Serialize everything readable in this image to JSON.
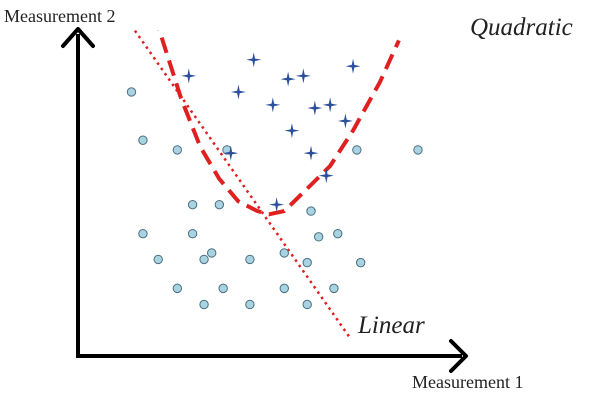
{
  "chart_data": {
    "type": "scatter",
    "title": "",
    "xlabel": "Measurement 1",
    "ylabel": "Measurement 2",
    "xlim": [
      0,
      100
    ],
    "ylim": [
      0,
      100
    ],
    "grid": false,
    "series": [
      {
        "marker": "circle",
        "color": "#a9d3e0",
        "points": [
          [
            14,
            82
          ],
          [
            17,
            67
          ],
          [
            26,
            64
          ],
          [
            39,
            64
          ],
          [
            30,
            47
          ],
          [
            37,
            47
          ],
          [
            17,
            38
          ],
          [
            30,
            38
          ],
          [
            21,
            30
          ],
          [
            33,
            30
          ],
          [
            35,
            32
          ],
          [
            45,
            30
          ],
          [
            38,
            21
          ],
          [
            26,
            21
          ],
          [
            33,
            16
          ],
          [
            45,
            16
          ],
          [
            54,
            21
          ],
          [
            54,
            32
          ],
          [
            61,
            45
          ],
          [
            63,
            37
          ],
          [
            68,
            38
          ],
          [
            60,
            29
          ],
          [
            67,
            21
          ],
          [
            60,
            16
          ],
          [
            74,
            29
          ],
          [
            73,
            64
          ],
          [
            89,
            64
          ]
        ]
      },
      {
        "marker": "star",
        "color": "#2b4f9a",
        "points": [
          [
            46,
            92
          ],
          [
            72,
            90
          ],
          [
            29,
            87
          ],
          [
            55,
            86
          ],
          [
            59,
            87
          ],
          [
            42,
            82
          ],
          [
            66,
            78
          ],
          [
            51,
            78
          ],
          [
            62,
            77
          ],
          [
            70,
            73
          ],
          [
            56,
            70
          ],
          [
            40,
            63
          ],
          [
            61,
            63
          ],
          [
            65,
            56
          ],
          [
            52,
            47
          ]
        ]
      }
    ],
    "boundaries": [
      {
        "label": "Quadratic",
        "style": "dashed",
        "color": "#e02020",
        "points": [
          [
            20,
            106
          ],
          [
            27,
            80
          ],
          [
            32,
            65
          ],
          [
            37,
            55
          ],
          [
            42,
            48
          ],
          [
            47,
            45
          ],
          [
            50,
            44
          ],
          [
            54,
            45
          ],
          [
            60,
            52
          ],
          [
            66,
            59
          ],
          [
            72,
            70
          ],
          [
            79,
            85
          ],
          [
            84,
            98
          ]
        ]
      },
      {
        "label": "Linear",
        "style": "dotted",
        "color": "#e02020",
        "points": [
          [
            12,
            106
          ],
          [
            71,
            6
          ]
        ]
      }
    ]
  }
}
